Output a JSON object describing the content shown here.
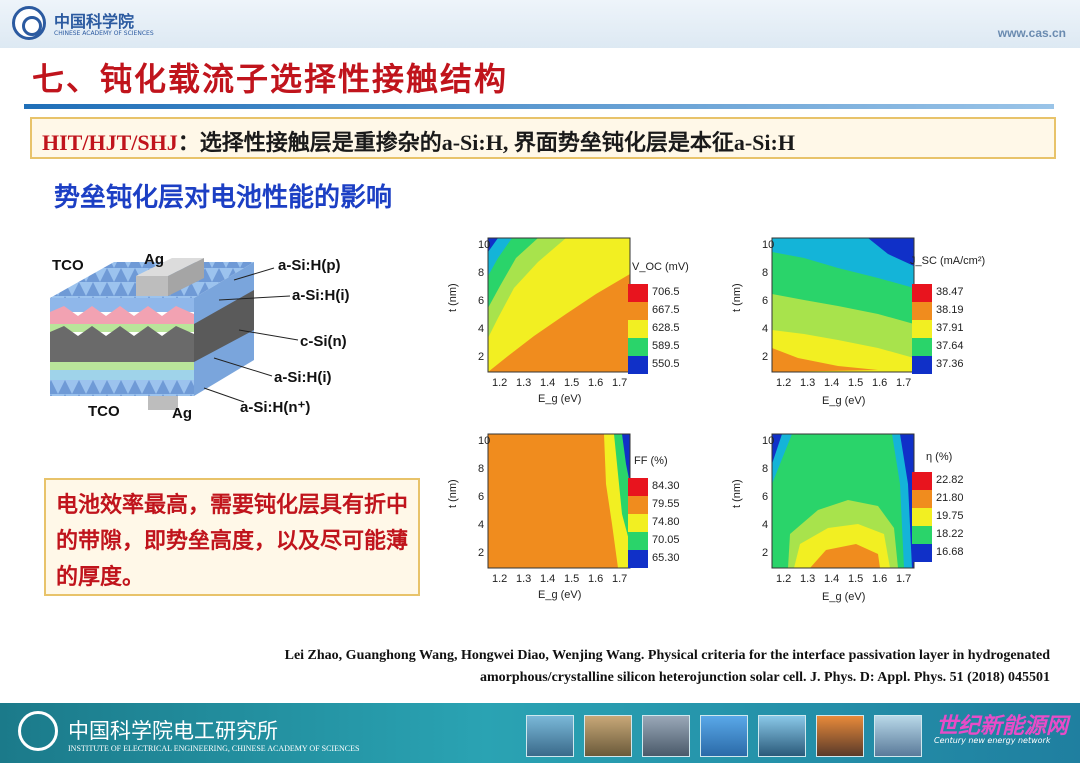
{
  "header": {
    "logo_cn": "中国科学院",
    "logo_en": "CHINESE ACADEMY OF SCIENCES",
    "url": "www.cas.cn"
  },
  "slide": {
    "title": "七、钝化载流子选择性接触结构",
    "hit_label": "HIT/HJT/SHJ",
    "hit_text": "：选择性接触层是重掺杂的a-Si:H, 界面势垒钝化层是本征a-Si:H",
    "subtitle": "势垒钝化层对电池性能的影响",
    "conclusion": "电池效率最高，需要钝化层具有折中的带隙，即势垒高度，以及尽可能薄的厚度。"
  },
  "structure_labels": {
    "tco_top": "TCO",
    "ag_top": "Ag",
    "asih_p": "a-Si:H(p)",
    "asih_i_top": "a-Si:H(i)",
    "csi_n": "c-Si(n)",
    "asih_i_bottom": "a-Si:H(i)",
    "tco_bottom": "TCO",
    "ag_bottom": "Ag",
    "asih_nplus": "a-Si:H(n⁺)"
  },
  "chart_data": [
    {
      "type": "heatmap",
      "title": "V_OC (mV)",
      "xlabel": "E_g (eV)",
      "ylabel": "t (nm)",
      "x_ticks": [
        "1.2",
        "1.3",
        "1.4",
        "1.5",
        "1.6",
        "1.7"
      ],
      "y_ticks": [
        "2",
        "4",
        "6",
        "8",
        "10"
      ],
      "colorbar": [
        "706.5",
        "667.5",
        "628.5",
        "589.5",
        "550.5"
      ]
    },
    {
      "type": "heatmap",
      "title": "J_SC (mA/cm²)",
      "xlabel": "E_g (eV)",
      "ylabel": "t (nm)",
      "x_ticks": [
        "1.2",
        "1.3",
        "1.4",
        "1.5",
        "1.6",
        "1.7"
      ],
      "y_ticks": [
        "2",
        "4",
        "6",
        "8",
        "10"
      ],
      "colorbar": [
        "38.47",
        "38.19",
        "37.91",
        "37.64",
        "37.36"
      ]
    },
    {
      "type": "heatmap",
      "title": "FF (%)",
      "xlabel": "E_g (eV)",
      "ylabel": "t (nm)",
      "x_ticks": [
        "1.2",
        "1.3",
        "1.4",
        "1.5",
        "1.6",
        "1.7"
      ],
      "y_ticks": [
        "2",
        "4",
        "6",
        "8",
        "10"
      ],
      "colorbar": [
        "84.30",
        "79.55",
        "74.80",
        "70.05",
        "65.30"
      ]
    },
    {
      "type": "heatmap",
      "title": "η (%)",
      "xlabel": "E_g (eV)",
      "ylabel": "t (nm)",
      "x_ticks": [
        "1.2",
        "1.3",
        "1.4",
        "1.5",
        "1.6",
        "1.7"
      ],
      "y_ticks": [
        "2",
        "4",
        "6",
        "8",
        "10"
      ],
      "colorbar": [
        "22.82",
        "21.80",
        "19.75",
        "18.22",
        "16.68"
      ]
    }
  ],
  "reference": {
    "line1": "Lei Zhao, Guanghong Wang, Hongwei Diao, Wenjing Wang. Physical criteria for the interface passivation layer in hydrogenated",
    "line2": "amorphous/crystalline silicon heterojunction solar cell. J. Phys. D: Appl. Phys. 51 (2018) 045501"
  },
  "footer": {
    "institute_cn": "中国科学院电工研究所",
    "institute_en": "INSTITUTE OF ELECTRICAL ENGINEERING, CHINESE ACADEMY OF SCIENCES",
    "watermark": "世纪新能源网",
    "watermark_en": "Century new energy network"
  }
}
